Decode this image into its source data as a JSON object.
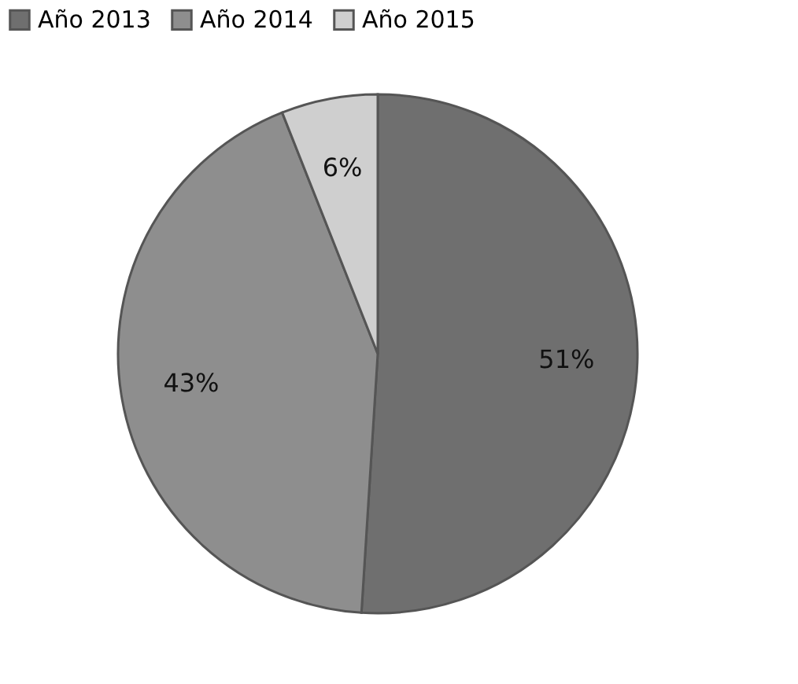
{
  "chart_data": {
    "type": "pie",
    "categories": [
      "Año 2013",
      "Año 2014",
      "Año 2015"
    ],
    "values": [
      51,
      43,
      6
    ],
    "colors": [
      "#6f6f6f",
      "#8e8e8e",
      "#cfcfcf"
    ],
    "value_labels": [
      "51%",
      "43%",
      "6%"
    ],
    "legend": "top"
  }
}
